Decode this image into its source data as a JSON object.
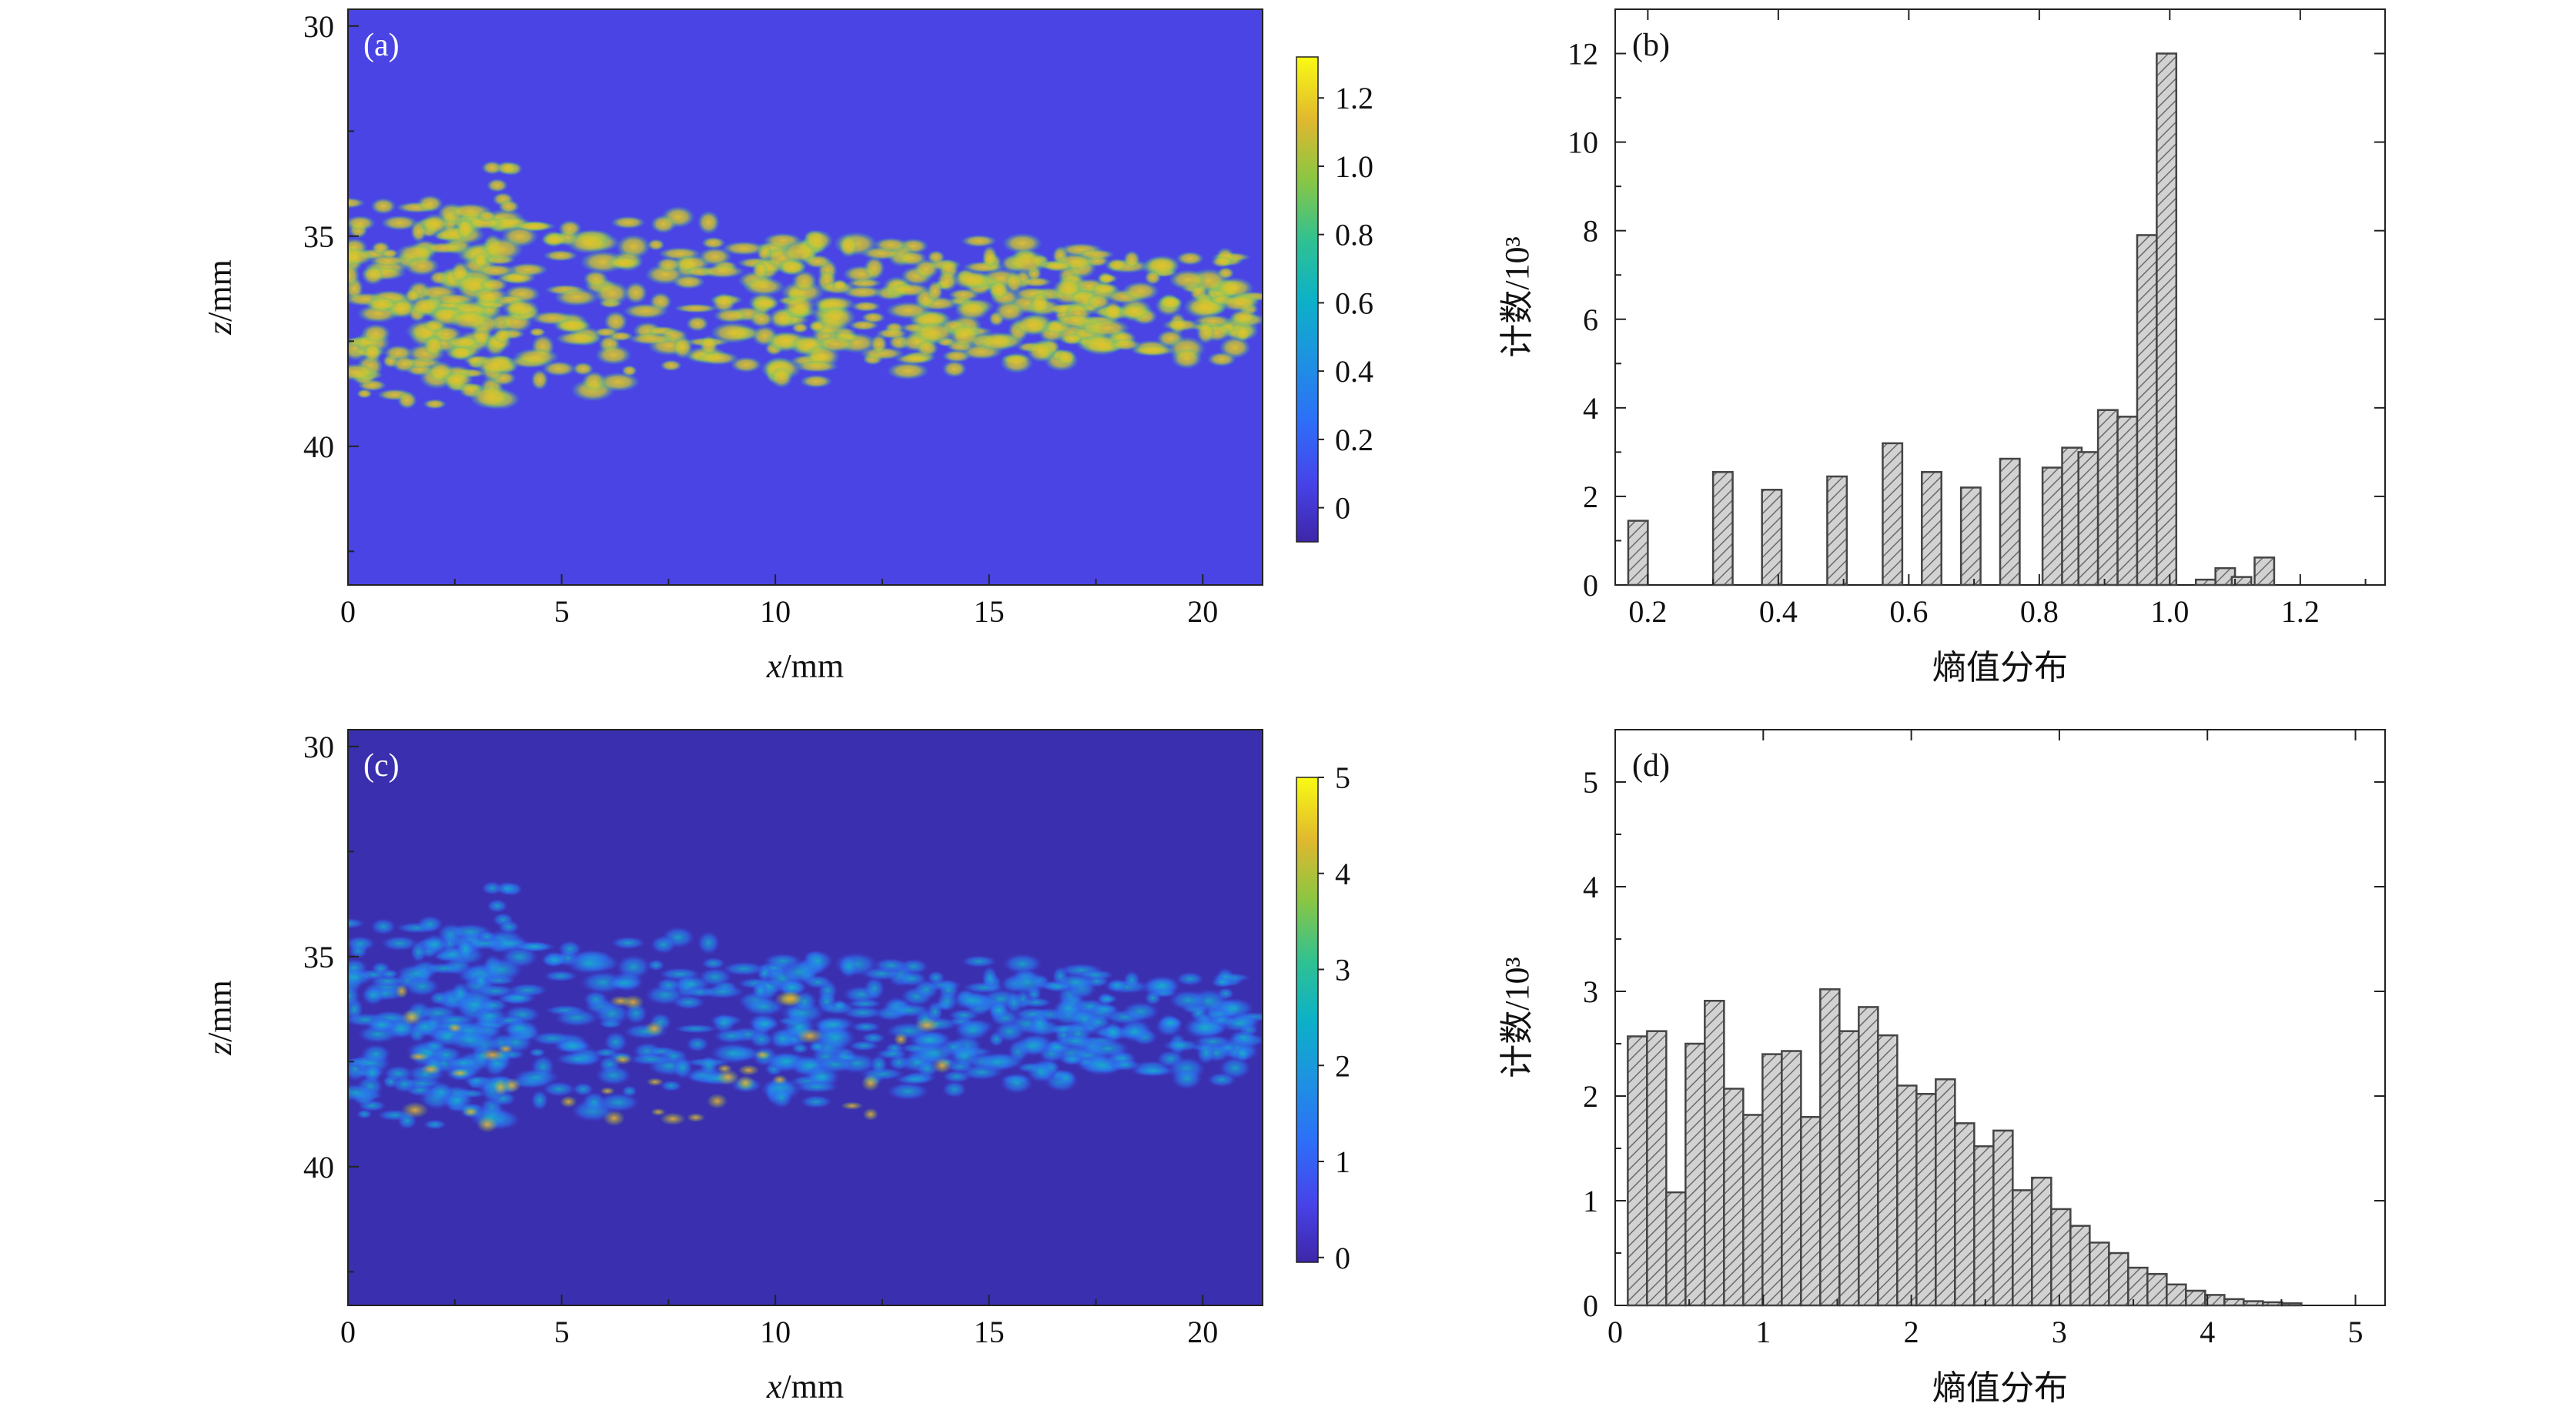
{
  "colors": {
    "bg_a": "#4a44e4",
    "bg_c": "#3a2fae",
    "bar_fill": "#c8c8c8",
    "bar_stroke": "#444444"
  },
  "chart_data": [
    {
      "id": "a",
      "type": "heatmap",
      "panel_label": "(a)",
      "xlabel": "x/mm",
      "ylabel": "z/mm",
      "xlim": [
        0,
        21.4
      ],
      "ylim": [
        43.3,
        29.6
      ],
      "xticks": [
        0,
        5,
        10,
        15,
        20
      ],
      "yticks": [
        30,
        35,
        40
      ],
      "colorbar": {
        "min": -0.1,
        "max": 1.32,
        "ticks": [
          0,
          0.2,
          0.4,
          0.6,
          0.8,
          1.0,
          1.2
        ],
        "tick_labels": [
          "0",
          "0.2",
          "0.4",
          "0.6",
          "0.8",
          "1.0",
          "1.2"
        ]
      }
    },
    {
      "id": "b",
      "type": "bar",
      "panel_label": "(b)",
      "xlabel": "熵值分布",
      "ylabel": "计数/10³",
      "xlim": [
        0.15,
        1.33
      ],
      "ylim": [
        0,
        13
      ],
      "xticks": [
        0.2,
        0.4,
        0.6,
        0.8,
        1.0,
        1.2
      ],
      "xtick_labels": [
        "0.2",
        "0.4",
        "0.6",
        "0.8",
        "1.0",
        "1.2"
      ],
      "yticks": [
        0,
        2,
        4,
        6,
        8,
        10,
        12
      ],
      "bar_width": 0.03,
      "x": [
        0.185,
        0.315,
        0.39,
        0.49,
        0.575,
        0.635,
        0.695,
        0.755,
        0.82,
        0.85,
        0.875,
        0.905,
        0.935,
        0.965,
        0.995,
        1.055,
        1.085,
        1.11,
        1.145
      ],
      "values": [
        1.45,
        2.55,
        2.15,
        2.45,
        3.2,
        2.55,
        2.2,
        2.85,
        2.65,
        3.1,
        3.0,
        3.95,
        3.8,
        7.9,
        12.0,
        0.12,
        0.38,
        0.18,
        0.62
      ]
    },
    {
      "id": "c",
      "type": "heatmap",
      "panel_label": "(c)",
      "xlabel": "x/mm",
      "ylabel": "z/mm",
      "xlim": [
        0,
        21.4
      ],
      "ylim": [
        43.3,
        29.6
      ],
      "xticks": [
        0,
        5,
        10,
        15,
        20
      ],
      "yticks": [
        30,
        35,
        40
      ],
      "colorbar": {
        "min": -0.05,
        "max": 5.0,
        "ticks": [
          0,
          1,
          2,
          3,
          4,
          5
        ],
        "tick_labels": [
          "0",
          "1",
          "2",
          "3",
          "4",
          "5"
        ]
      }
    },
    {
      "id": "d",
      "type": "bar",
      "panel_label": "(d)",
      "xlabel": "熵值分布",
      "ylabel": "计数/10³",
      "xlim": [
        0,
        5.2
      ],
      "ylim": [
        0,
        5.5
      ],
      "xticks": [
        0,
        1,
        2,
        3,
        4,
        5
      ],
      "xtick_labels": [
        "0",
        "1",
        "2",
        "3",
        "4",
        "5"
      ],
      "yticks": [
        0,
        1,
        2,
        3,
        4,
        5
      ],
      "bar_width": 0.13,
      "x": [
        0.15,
        0.28,
        0.41,
        0.54,
        0.67,
        0.8,
        0.93,
        1.06,
        1.19,
        1.32,
        1.45,
        1.58,
        1.71,
        1.84,
        1.97,
        2.1,
        2.23,
        2.36,
        2.49,
        2.62,
        2.75,
        2.88,
        3.01,
        3.14,
        3.27,
        3.4,
        3.53,
        3.66,
        3.79,
        3.92,
        4.05,
        4.18,
        4.31,
        4.44,
        4.57
      ],
      "values": [
        2.57,
        2.62,
        1.08,
        2.5,
        2.91,
        2.07,
        1.82,
        2.4,
        2.43,
        1.8,
        3.02,
        2.62,
        2.85,
        2.58,
        2.1,
        2.02,
        2.16,
        1.74,
        1.52,
        1.67,
        1.1,
        1.22,
        0.92,
        0.76,
        0.6,
        0.5,
        0.36,
        0.3,
        0.2,
        0.14,
        0.1,
        0.06,
        0.04,
        0.03,
        0.02
      ]
    }
  ]
}
